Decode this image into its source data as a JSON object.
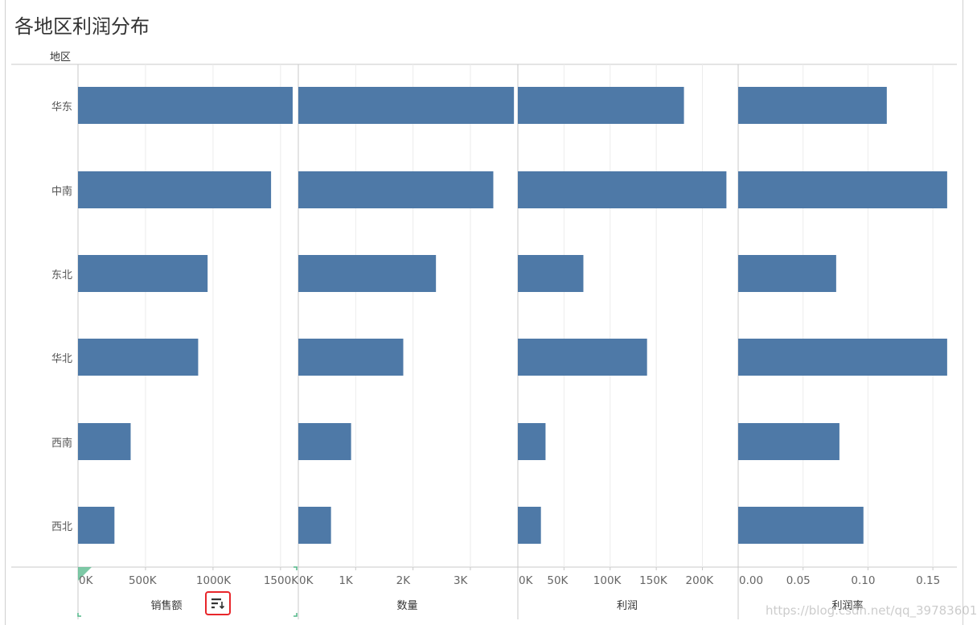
{
  "title": "各地区利润分布",
  "row_header": "地区",
  "watermark": "https://blog.csdn.net/qq_39783601",
  "colors": {
    "bar": "#4e79a7",
    "grid": "#ececec",
    "axis": "#c8c8c8",
    "sort_highlight": "#e8262b",
    "brand_mark": "#52b788"
  },
  "icons": {
    "sort": "sort-descending-icon"
  },
  "chart_data": {
    "type": "bar",
    "orientation": "horizontal",
    "categories": [
      "华东",
      "中南",
      "东北",
      "华北",
      "西南",
      "西北"
    ],
    "panels": [
      {
        "name": "销售额",
        "ticks": [
          "0K",
          "500K",
          "1000K",
          "1500K"
        ],
        "tick_values": [
          0,
          500000,
          1000000,
          1500000
        ],
        "xlim": [
          0,
          1620000
        ],
        "values": [
          1590000,
          1430000,
          960000,
          890000,
          390000,
          270000
        ]
      },
      {
        "name": "数量",
        "ticks": [
          "0K",
          "1K",
          "2K",
          "3K"
        ],
        "tick_values": [
          0,
          1000,
          2000,
          3000
        ],
        "xlim": [
          0,
          3800
        ],
        "values": [
          3760,
          3400,
          2400,
          1830,
          920,
          570
        ]
      },
      {
        "name": "利润",
        "ticks": [
          "0K",
          "50K",
          "100K",
          "150K",
          "200K"
        ],
        "tick_values": [
          0,
          50000,
          100000,
          150000,
          200000
        ],
        "xlim": [
          0,
          237000
        ],
        "values": [
          180000,
          226000,
          71000,
          140000,
          30000,
          25000
        ]
      },
      {
        "name": "利润率",
        "ticks": [
          "0.00",
          "0.05",
          "0.10",
          "0.15"
        ],
        "tick_values": [
          0,
          0.05,
          0.1,
          0.15
        ],
        "xlim": [
          0,
          0.1685
        ],
        "values": [
          0.1145,
          0.161,
          0.0755,
          0.161,
          0.078,
          0.0965
        ]
      }
    ],
    "grid": true,
    "legend": "none"
  }
}
